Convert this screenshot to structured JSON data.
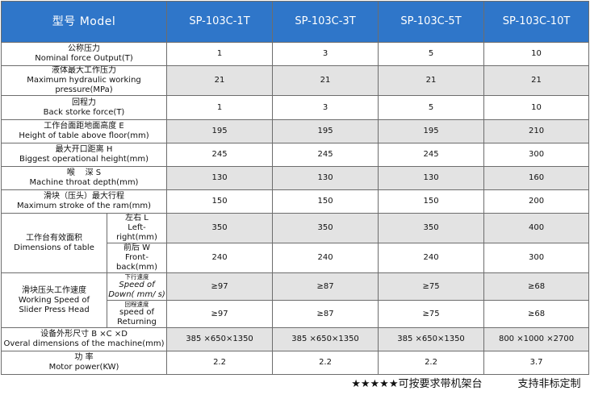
{
  "header": {
    "model_label": "型号 Model",
    "models": [
      "SP-103C-1T",
      "SP-103C-3T",
      "SP-103C-5T",
      "SP-103C-10T"
    ]
  },
  "rows": [
    {
      "zh": "公称压力",
      "en": "Nominal force Output(T)",
      "values": [
        "1",
        "3",
        "5",
        "10"
      ],
      "shaded": false
    },
    {
      "zh": "液体最大工作压力",
      "en": "Maximum hydraulic working pressure(MPa)",
      "values": [
        "21",
        "21",
        "21",
        "21"
      ],
      "shaded": true
    },
    {
      "zh": "回程力",
      "en": "Back storke force(T)",
      "values": [
        "1",
        "3",
        "5",
        "10"
      ],
      "shaded": false
    },
    {
      "zh": "工作台面距地面高度 E",
      "en": "Height of table above floor(mm)",
      "values": [
        "195",
        "195",
        "195",
        "210"
      ],
      "shaded": true
    },
    {
      "zh": "最大开口距离 H",
      "en": "Biggest operational height(mm)",
      "values": [
        "245",
        "245",
        "245",
        "300"
      ],
      "shaded": false
    },
    {
      "zh": "喉    深 S",
      "en": "Machine throat depth(mm)",
      "values": [
        "130",
        "130",
        "130",
        "160"
      ],
      "shaded": true
    },
    {
      "zh": "滑块（压头）最大行程",
      "en": "Maximum stroke of the ram(mm)",
      "values": [
        "150",
        "150",
        "150",
        "200"
      ],
      "shaded": false
    }
  ],
  "table_dims": {
    "zh": "工作台有效面积",
    "en": "Dimensions of table",
    "subs": [
      {
        "zh": "左右 L",
        "en": "Left-right(mm)",
        "values": [
          "350",
          "350",
          "350",
          "400"
        ],
        "shaded": true
      },
      {
        "zh": "前后 W",
        "en": "Front-back(mm)",
        "values": [
          "240",
          "240",
          "240",
          "300"
        ],
        "shaded": false
      }
    ]
  },
  "slider_speed": {
    "zh": "滑块压头工作速度",
    "en1": "Working Speed of",
    "en2": "Slider Press Head",
    "subs": [
      {
        "zh": "下行速度",
        "en1": "Speed of",
        "en2": "Down( mm/ s)",
        "values": [
          "≥97",
          "≥87",
          "≥75",
          "≥68"
        ],
        "shaded": true
      },
      {
        "zh": "回程速度",
        "en1": "speed of",
        "en2": "Returning",
        "values": [
          "≥97",
          "≥87",
          "≥75",
          "≥68"
        ],
        "shaded": false
      }
    ]
  },
  "overall": {
    "zh": "设备外形尺寸 B ×C ×D",
    "en": "Overal dimensions of the machine(mm)",
    "values": [
      "385 ×650×1350",
      "385 ×650×1350",
      "385 ×650×1350",
      "800 ×1000 ×2700"
    ],
    "shaded": true
  },
  "motor": {
    "zh": "功 率",
    "en": "Motor power(KW)",
    "values": [
      "2.2",
      "2.2",
      "2.2",
      "3.7"
    ],
    "shaded": false
  },
  "footer": {
    "left": "★★★★★可按要求带机架台",
    "right": "支持非标定制"
  }
}
